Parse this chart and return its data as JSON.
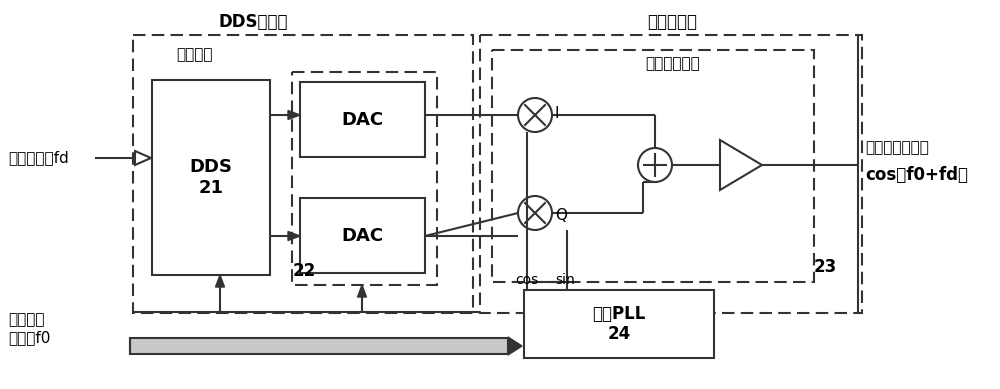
{
  "bg": "#ffffff",
  "lc": "#333333",
  "dds_label": "DDS\n21",
  "dac_label": "DAC",
  "pll_label": "内置PLL\n24",
  "dds_ctrl_label": "DDS控制器",
  "qmod_label": "正交调制器",
  "qmod_unit_label": "正交调制单元",
  "freq_ctrl": "频率控制字fd",
  "carrier_ctrl_1": "载波频率",
  "carrier_ctrl_2": "控制字f0",
  "work_clk": "工作时钟",
  "output_text": "单边带本振输出",
  "output_formula": "cos（f0+fd）",
  "cos_lbl": "cos",
  "sin_lbl": "sin",
  "I_lbl": "I",
  "Q_lbl": "Q",
  "lbl_22": "22",
  "lbl_23": "23",
  "fig_w": 10.0,
  "fig_h": 3.89,
  "dpi": 100
}
